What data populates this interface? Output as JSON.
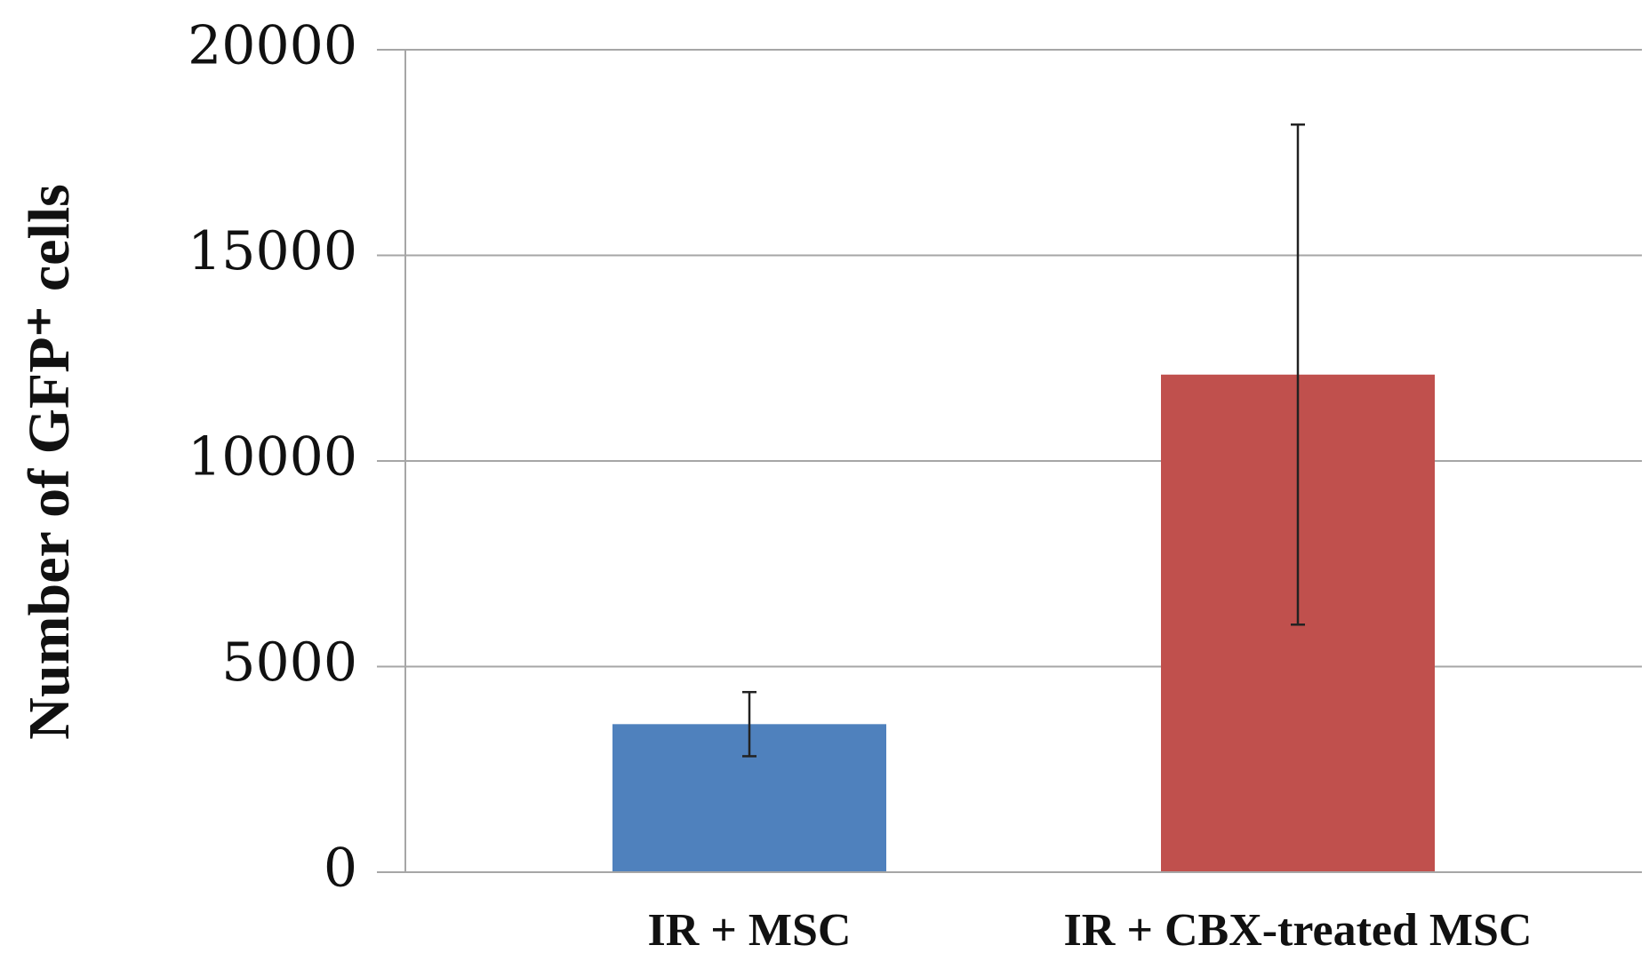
{
  "chart_data": {
    "type": "bar",
    "y_label": "Number of GFP⁺ cells",
    "categories": [
      "IR + MSC",
      "IR + CBX-treated MSC"
    ],
    "values": [
      3600,
      12100
    ],
    "errors": [
      780,
      6080
    ],
    "colors": [
      "#4f81bd",
      "#c0504d"
    ],
    "ylim": [
      0,
      20000
    ],
    "yticks": [
      0,
      5000,
      10000,
      15000,
      20000
    ],
    "grid": true
  }
}
